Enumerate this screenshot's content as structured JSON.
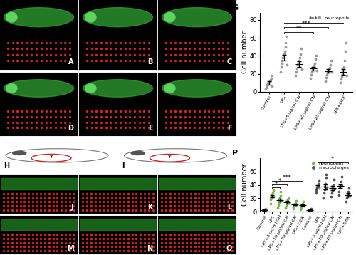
{
  "image_panels": [
    {
      "label": "A"
    },
    {
      "label": "B"
    },
    {
      "label": "C"
    },
    {
      "label": "D"
    },
    {
      "label": "E"
    },
    {
      "label": "F"
    },
    {
      "label": "J"
    },
    {
      "label": "K"
    },
    {
      "label": "L"
    },
    {
      "label": "M"
    },
    {
      "label": "N"
    },
    {
      "label": "O"
    }
  ],
  "schematics": [
    {
      "label": "H",
      "mark": "*"
    },
    {
      "label": "I",
      "mark": "*"
    }
  ],
  "chart_data": [
    {
      "type": "scatter",
      "title": "G",
      "y_label": "Cell number",
      "categories": [
        "Control",
        "LPS",
        "LPS+5 μg/ml CN",
        "LPS+10 μg/ml CN",
        "LPS+20 μg/ml CN",
        "LPS+DEX"
      ],
      "ylim": [
        0,
        88
      ],
      "yticks": [
        0,
        20,
        40,
        60,
        80
      ],
      "legend": "upper right",
      "series": [
        {
          "name": "neutrophils",
          "color": "#9a9a9a",
          "values": [
            10,
            38,
            31,
            26,
            23,
            22
          ],
          "errors": [
            2,
            3,
            3,
            2,
            2,
            3
          ],
          "points": [
            [
              3,
              5,
              7,
              8,
              9,
              10,
              11,
              12,
              13,
              15,
              18,
              6
            ],
            [
              22,
              28,
              32,
              35,
              38,
              40,
              42,
              45,
              50,
              55,
              62,
              30
            ],
            [
              18,
              22,
              26,
              30,
              32,
              35,
              38,
              42,
              48,
              25
            ],
            [
              15,
              19,
              22,
              25,
              27,
              29,
              32,
              36,
              40,
              24
            ],
            [
              12,
              16,
              19,
              21,
              23,
              25,
              27,
              30,
              35,
              22
            ],
            [
              10,
              14,
              17,
              20,
              22,
              25,
              28,
              35,
              45,
              55,
              18
            ]
          ]
        }
      ],
      "annotations": [
        {
          "from": 1,
          "to": 3,
          "text": "**"
        },
        {
          "from": 1,
          "to": 4,
          "text": "***"
        },
        {
          "from": 1,
          "to": 5,
          "text": "***"
        }
      ]
    },
    {
      "type": "scatter",
      "title": "P",
      "y_label": "Cell number",
      "categories": [
        "Control",
        "LPS",
        "LPS+5 μg/ml CN",
        "LPS+10 μg/ml CN",
        "LPS+20 μg/ml CN",
        "LPS+DEX",
        "Control",
        "LPS",
        "LPS+5 μg/ml CN",
        "LPS+10 μg/ml CN",
        "LPS+20 μg/ml CN",
        "LPS+DEX"
      ],
      "ylim": [
        0,
        80
      ],
      "yticks": [
        0,
        20,
        40,
        60
      ],
      "legend": "upper right",
      "series": [
        {
          "name": "neutrophils",
          "color": "#7ab648",
          "values": [
            2,
            23,
            17,
            14,
            11,
            10,
            null,
            null,
            null,
            null,
            null,
            null
          ],
          "errors": [
            1,
            2,
            2,
            2,
            1,
            1,
            null,
            null,
            null,
            null,
            null,
            null
          ],
          "points": [
            [
              0,
              1,
              1,
              2,
              3,
              4,
              2
            ],
            [
              12,
              18,
              20,
              23,
              25,
              28,
              32,
              22
            ],
            [
              5,
              10,
              14,
              17,
              20,
              24,
              30,
              16
            ],
            [
              6,
              9,
              12,
              15,
              18,
              20,
              13
            ],
            [
              4,
              7,
              9,
              11,
              13,
              16,
              10
            ],
            [
              3,
              6,
              8,
              10,
              12,
              15,
              9
            ],
            null,
            null,
            null,
            null,
            null,
            null
          ]
        },
        {
          "name": "macrophages",
          "color": "#555555",
          "values": [
            null,
            null,
            null,
            null,
            null,
            null,
            2,
            37,
            37,
            35,
            38,
            25
          ],
          "errors": [
            null,
            null,
            null,
            null,
            null,
            null,
            1,
            3,
            4,
            3,
            3,
            3
          ],
          "points": [
            null,
            null,
            null,
            null,
            null,
            null,
            [
              0,
              1,
              2,
              3,
              4,
              2
            ],
            [
              28,
              32,
              35,
              38,
              42,
              46,
              37
            ],
            [
              20,
              28,
              33,
              37,
              42,
              50,
              55,
              36
            ],
            [
              22,
              28,
              32,
              36,
              40,
              48,
              34
            ],
            [
              25,
              30,
              35,
              40,
              45,
              52,
              38
            ],
            [
              15,
              20,
              23,
              26,
              30,
              35,
              24
            ]
          ]
        }
      ],
      "annotations": [
        {
          "from": 1,
          "to": 2,
          "text": "*"
        },
        {
          "from": 1,
          "to": 3,
          "text": "*"
        },
        {
          "from": 1,
          "to": 5,
          "text": "***"
        },
        {
          "from": 7,
          "to": 11,
          "text": "*"
        }
      ]
    }
  ]
}
